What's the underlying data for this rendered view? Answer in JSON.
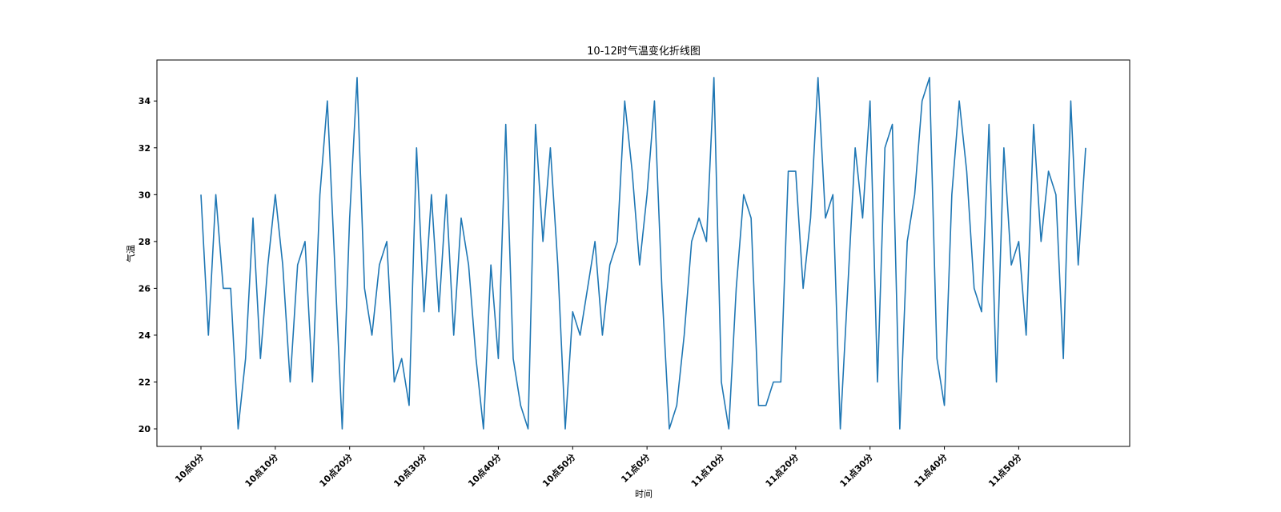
{
  "chart_data": {
    "type": "line",
    "title": "10-12时气温变化折线图",
    "xlabel": "时间",
    "ylabel": "气温",
    "ylim": [
      19.25,
      35.75
    ],
    "yticks": [
      20,
      22,
      24,
      26,
      28,
      30,
      32,
      34
    ],
    "xticks": [
      0,
      10,
      20,
      30,
      40,
      50,
      60,
      70,
      80,
      90,
      100,
      110
    ],
    "xtick_labels": [
      "10点0分",
      "10点10分",
      "10点20分",
      "10点30分",
      "10点40分",
      "10点50分",
      "11点0分",
      "11点10分",
      "11点20分",
      "11点30分",
      "11点40分",
      "11点50分"
    ],
    "grid": false,
    "color": "#1f77b4",
    "x": [
      0,
      1,
      2,
      3,
      4,
      5,
      6,
      7,
      8,
      9,
      10,
      11,
      12,
      13,
      14,
      15,
      16,
      17,
      18,
      19,
      20,
      21,
      22,
      23,
      24,
      25,
      26,
      27,
      28,
      29,
      30,
      31,
      32,
      33,
      34,
      35,
      36,
      37,
      38,
      39,
      40,
      41,
      42,
      43,
      44,
      45,
      46,
      47,
      48,
      49,
      50,
      51,
      52,
      53,
      54,
      55,
      56,
      57,
      58,
      59,
      60,
      61,
      62,
      63,
      64,
      65,
      66,
      67,
      68,
      69,
      70,
      71,
      72,
      73,
      74,
      75,
      76,
      77,
      78,
      79,
      80,
      81,
      82,
      83,
      84,
      85,
      86,
      87,
      88,
      89,
      90,
      91,
      92,
      93,
      94,
      95,
      96,
      97,
      98,
      99,
      100,
      101,
      102,
      103,
      104,
      105,
      106,
      107,
      108,
      109,
      110,
      111,
      112,
      113,
      114,
      115,
      116,
      117,
      118,
      119
    ],
    "values": [
      30,
      24,
      30,
      26,
      26,
      20,
      23,
      29,
      23,
      27,
      30,
      27,
      22,
      27,
      28,
      22,
      30,
      34,
      27,
      20,
      29,
      35,
      26,
      24,
      27,
      28,
      22,
      23,
      21,
      32,
      25,
      30,
      25,
      30,
      24,
      29,
      27,
      23,
      20,
      27,
      23,
      33,
      23,
      21,
      20,
      33,
      28,
      32,
      27,
      20,
      25,
      24,
      26,
      28,
      24,
      27,
      28,
      34,
      31,
      27,
      30,
      34,
      26,
      20,
      21,
      24,
      28,
      29,
      28,
      35,
      22,
      20,
      26,
      30,
      29,
      21,
      21,
      22,
      22,
      31,
      31,
      26,
      29,
      35,
      29,
      30,
      20,
      26,
      32,
      29,
      34,
      22,
      32,
      33,
      20,
      28,
      30,
      34,
      35,
      23,
      21,
      30,
      34,
      31,
      26,
      25,
      33,
      22,
      32,
      27,
      28,
      24,
      33,
      28,
      31,
      30,
      23,
      34,
      27,
      32
    ]
  }
}
